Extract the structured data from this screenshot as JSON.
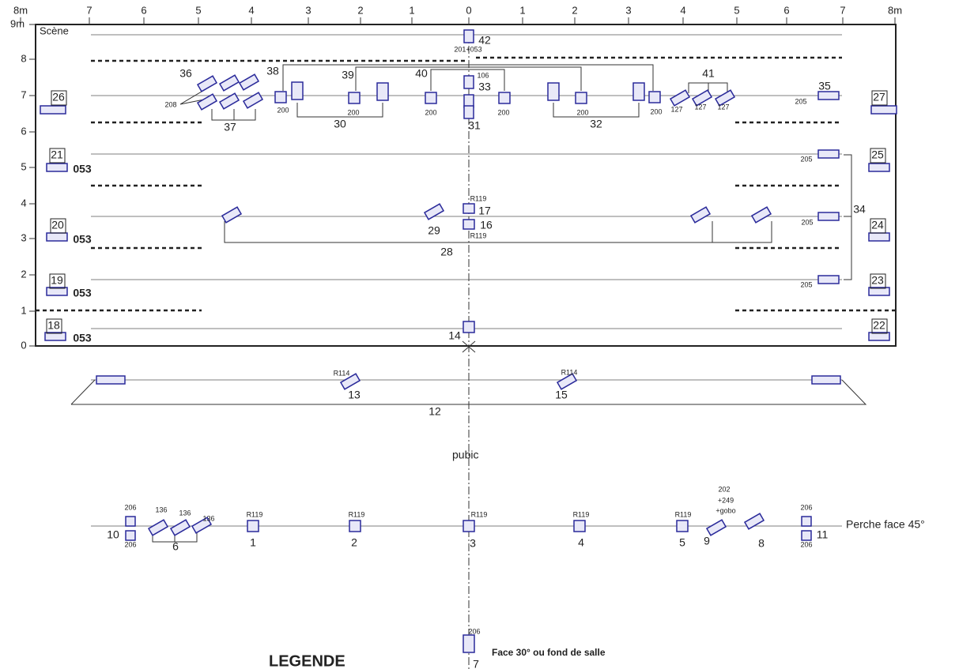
{
  "ruler": {
    "x_labels": [
      "8m",
      "7",
      "6",
      "5",
      "4",
      "3",
      "2",
      "1",
      "0",
      "1",
      "2",
      "3",
      "4",
      "5",
      "6",
      "7",
      "8m"
    ],
    "y_labels": [
      "9m",
      "8",
      "7",
      "6",
      "5",
      "4",
      "3",
      "2",
      "1",
      "0"
    ]
  },
  "texts": {
    "stage": "Scène",
    "public": "pubic",
    "perche": "Perche face 45°",
    "face": "Face 30° ou fond de salle",
    "legend": "LEGENDE"
  },
  "fixture_numbers": [
    "42",
    "33",
    "31",
    "40",
    "39",
    "38",
    "36",
    "37",
    "30",
    "32",
    "41",
    "35",
    "26",
    "27",
    "21",
    "25",
    "20",
    "24",
    "19",
    "23",
    "18",
    "22",
    "17",
    "16",
    "29",
    "28",
    "34",
    "14",
    "13",
    "15",
    "12",
    "10",
    "6",
    "1",
    "2",
    "3",
    "4",
    "5",
    "9",
    "8",
    "11",
    "7"
  ],
  "gel_codes": [
    "201+053",
    "106",
    "200",
    "200",
    "200",
    "200",
    "200",
    "200",
    "208",
    "127",
    "127",
    "127",
    "205",
    "205",
    "205",
    "205",
    "053",
    "053",
    "053",
    "053",
    "R119",
    "R119",
    "R114",
    "R114",
    "206",
    "206",
    "206",
    "206",
    "136",
    "136",
    "136",
    "R119",
    "R119",
    "R119",
    "R119",
    "R119",
    "202",
    "+249",
    "+gobo",
    "206"
  ]
}
